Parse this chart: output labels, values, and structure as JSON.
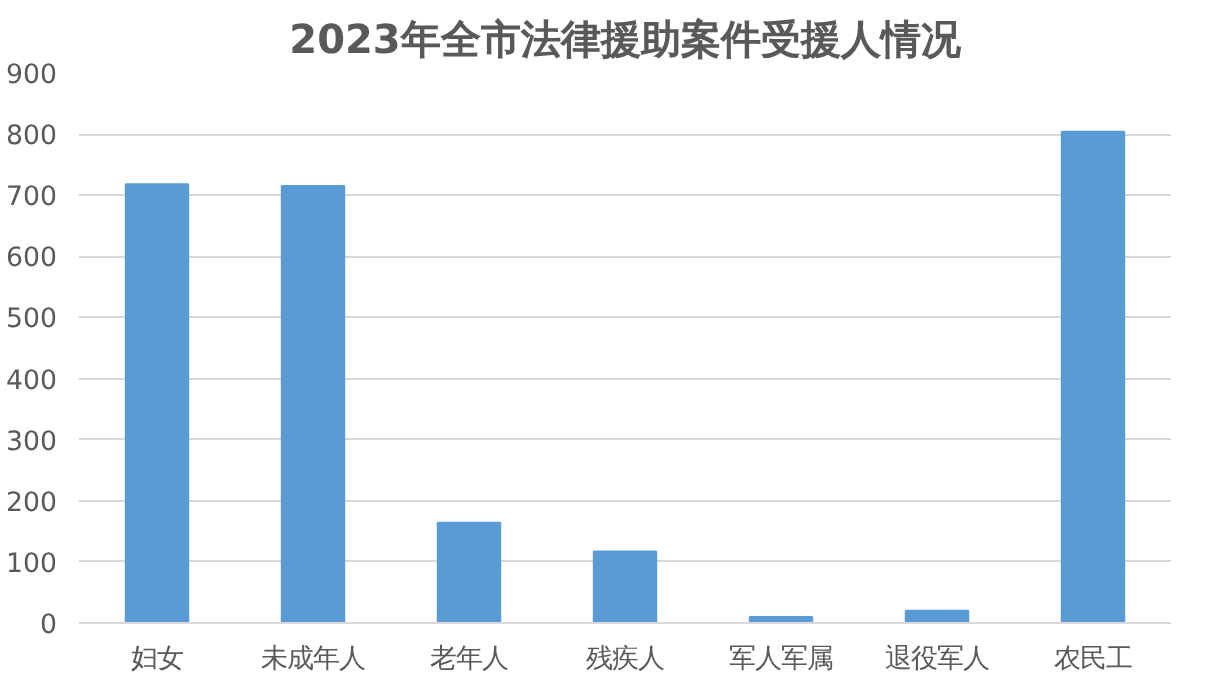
{
  "chart_data": {
    "type": "bar",
    "title": "2023年全市法律援助案件受援人情况",
    "categories": [
      "妇女",
      "未成年人",
      "老年人",
      "残疾人",
      "军人军属",
      "退役军人",
      "农民工"
    ],
    "values": [
      718,
      715,
      164,
      117,
      10,
      20,
      804
    ],
    "color": "#5b9bd5",
    "ylim": [
      0,
      900
    ],
    "yticks": [
      0,
      100,
      200,
      300,
      400,
      500,
      600,
      700,
      800,
      900
    ],
    "grid": "y"
  }
}
